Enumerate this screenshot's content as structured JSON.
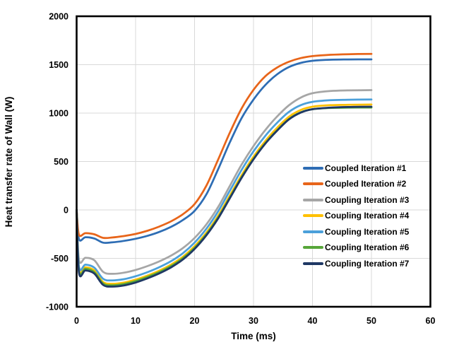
{
  "chart_data": {
    "type": "line",
    "title": "",
    "xlabel": "Time (ms)",
    "ylabel": "Heat transfer rate of Wall (W)",
    "xlim": [
      0,
      60
    ],
    "ylim": [
      -1000,
      2000
    ],
    "xticks": [
      0,
      10,
      20,
      30,
      40,
      50,
      60
    ],
    "yticks": [
      -1000,
      -500,
      0,
      500,
      1000,
      1500,
      2000
    ],
    "grid": true,
    "legend_position": "inside-right",
    "grid_color": "#D9D9D9",
    "border_color": "#000000",
    "x": [
      0,
      0.4,
      1.5,
      3,
      4.5,
      6,
      8,
      10,
      12,
      14,
      16,
      18,
      20,
      22,
      24,
      26,
      28,
      30,
      32,
      34,
      36,
      38,
      40,
      43,
      46,
      50
    ],
    "series": [
      {
        "name": "Coupled Iteration #1",
        "color": "#2E6DB4",
        "values": [
          0,
          -300,
          -282,
          -295,
          -338,
          -335,
          -320,
          -298,
          -268,
          -228,
          -175,
          -105,
          -10,
          160,
          420,
          700,
          950,
          1140,
          1290,
          1400,
          1475,
          1518,
          1540,
          1551,
          1554,
          1555
        ]
      },
      {
        "name": "Coupled Iteration #2",
        "color": "#E8651A",
        "values": [
          0,
          -255,
          -240,
          -252,
          -288,
          -285,
          -270,
          -248,
          -215,
          -172,
          -118,
          -45,
          60,
          250,
          520,
          800,
          1050,
          1240,
          1380,
          1470,
          1530,
          1568,
          1588,
          1602,
          1608,
          1612
        ]
      },
      {
        "name": "Coupling Iteration #3",
        "color": "#A6A6A6",
        "values": [
          0,
          -515,
          -495,
          -520,
          -640,
          -660,
          -648,
          -620,
          -580,
          -532,
          -472,
          -395,
          -290,
          -150,
          30,
          250,
          470,
          660,
          825,
          965,
          1080,
          1160,
          1205,
          1228,
          1234,
          1237
        ]
      },
      {
        "name": "Coupling Iteration #4",
        "color": "#FFC000",
        "values": [
          0,
          -612,
          -592,
          -625,
          -745,
          -763,
          -750,
          -720,
          -678,
          -628,
          -565,
          -485,
          -375,
          -235,
          -60,
          150,
          360,
          550,
          712,
          848,
          962,
          1032,
          1066,
          1082,
          1086,
          1088
        ]
      },
      {
        "name": "Coupling Iteration #5",
        "color": "#4BA0DA",
        "values": [
          0,
          -585,
          -565,
          -596,
          -712,
          -728,
          -715,
          -685,
          -643,
          -592,
          -530,
          -448,
          -338,
          -195,
          -15,
          200,
          415,
          605,
          765,
          900,
          1012,
          1082,
          1116,
          1133,
          1138,
          1141
        ]
      },
      {
        "name": "Coupling Iteration #6",
        "color": "#56A639",
        "values": [
          0,
          -628,
          -608,
          -642,
          -760,
          -778,
          -765,
          -735,
          -692,
          -642,
          -580,
          -500,
          -392,
          -252,
          -78,
          130,
          340,
          528,
          690,
          822,
          938,
          1008,
          1040,
          1053,
          1056,
          1058
        ]
      },
      {
        "name": "Coupling Iteration #7",
        "color": "#1F3864",
        "values": [
          0,
          -645,
          -625,
          -658,
          -775,
          -792,
          -780,
          -750,
          -707,
          -656,
          -594,
          -513,
          -404,
          -263,
          -88,
          122,
          333,
          522,
          684,
          818,
          934,
          1005,
          1040,
          1056,
          1063,
          1066
        ]
      }
    ]
  }
}
